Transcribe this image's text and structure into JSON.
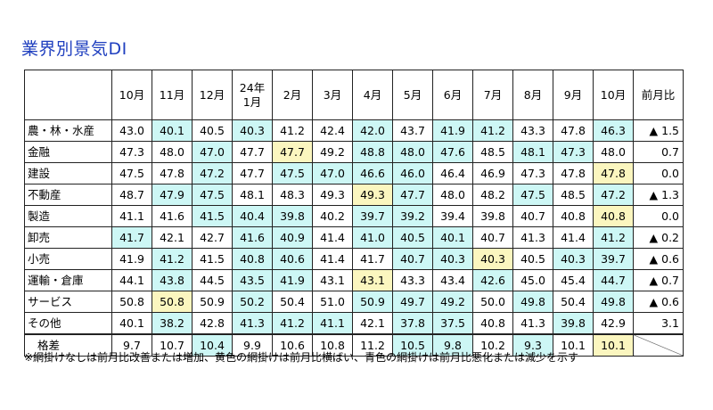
{
  "title": "業界別景気DI",
  "columns": [
    "10月",
    "11月",
    "12月",
    "24年\n1月",
    "2月",
    "3月",
    "4月",
    "5月",
    "6月",
    "7月",
    "8月",
    "9月",
    "10月",
    "前月比"
  ],
  "rows": [
    {
      "label": "農・林・水産",
      "values": [
        "43.0",
        "40.1",
        "40.5",
        "40.3",
        "41.2",
        "42.4",
        "42.0",
        "43.7",
        "41.9",
        "41.2",
        "43.3",
        "47.8",
        "46.3"
      ],
      "shade": [
        "",
        "c",
        "",
        "c",
        "",
        "",
        "c",
        "",
        "c",
        "c",
        "",
        "",
        "c"
      ],
      "diff": "▲ 1.5"
    },
    {
      "label": "金融",
      "values": [
        "47.3",
        "48.0",
        "47.0",
        "47.7",
        "47.7",
        "49.2",
        "48.8",
        "48.0",
        "47.6",
        "48.5",
        "48.1",
        "47.3",
        "48.0"
      ],
      "shade": [
        "",
        "",
        "c",
        "",
        "y",
        "",
        "c",
        "c",
        "c",
        "",
        "c",
        "c",
        ""
      ],
      "diff": "0.7"
    },
    {
      "label": "建設",
      "values": [
        "47.5",
        "47.8",
        "47.2",
        "47.7",
        "47.5",
        "47.0",
        "46.6",
        "46.0",
        "46.4",
        "46.9",
        "47.3",
        "47.8",
        "47.8"
      ],
      "shade": [
        "",
        "",
        "c",
        "",
        "c",
        "c",
        "c",
        "c",
        "",
        "",
        "",
        "",
        "y"
      ],
      "diff": "0.0"
    },
    {
      "label": "不動産",
      "values": [
        "48.7",
        "47.9",
        "47.5",
        "48.1",
        "48.3",
        "49.3",
        "49.3",
        "47.7",
        "48.0",
        "48.2",
        "47.5",
        "48.5",
        "47.2"
      ],
      "shade": [
        "",
        "c",
        "c",
        "",
        "",
        "",
        "y",
        "c",
        "",
        "",
        "c",
        "",
        "c"
      ],
      "diff": "▲ 1.3"
    },
    {
      "label": "製造",
      "values": [
        "41.1",
        "41.6",
        "41.5",
        "40.4",
        "39.8",
        "40.2",
        "39.7",
        "39.2",
        "39.4",
        "39.8",
        "40.7",
        "40.8",
        "40.8"
      ],
      "shade": [
        "",
        "",
        "c",
        "c",
        "c",
        "",
        "c",
        "c",
        "",
        "",
        "",
        "",
        "y"
      ],
      "diff": "0.0"
    },
    {
      "label": "卸売",
      "values": [
        "41.7",
        "42.1",
        "42.7",
        "41.6",
        "40.9",
        "41.4",
        "41.0",
        "40.5",
        "40.1",
        "40.7",
        "41.3",
        "41.4",
        "41.2"
      ],
      "shade": [
        "c",
        "",
        "",
        "c",
        "c",
        "",
        "c",
        "c",
        "c",
        "",
        "",
        "",
        "c"
      ],
      "diff": "▲ 0.2"
    },
    {
      "label": "小売",
      "values": [
        "41.9",
        "41.2",
        "41.5",
        "40.8",
        "40.6",
        "41.4",
        "41.7",
        "40.7",
        "40.3",
        "40.3",
        "40.5",
        "40.3",
        "39.7"
      ],
      "shade": [
        "",
        "c",
        "",
        "c",
        "c",
        "",
        "",
        "c",
        "c",
        "y",
        "",
        "c",
        "c"
      ],
      "diff": "▲ 0.6"
    },
    {
      "label": "運輸・倉庫",
      "values": [
        "44.1",
        "43.8",
        "44.5",
        "43.5",
        "41.9",
        "43.1",
        "43.1",
        "43.3",
        "43.4",
        "42.6",
        "45.0",
        "45.4",
        "44.7"
      ],
      "shade": [
        "",
        "c",
        "",
        "c",
        "c",
        "",
        "y",
        "",
        "",
        "c",
        "",
        "",
        "c"
      ],
      "diff": "▲ 0.7"
    },
    {
      "label": "サービス",
      "values": [
        "50.8",
        "50.8",
        "50.9",
        "50.2",
        "50.4",
        "51.0",
        "50.9",
        "49.7",
        "49.2",
        "50.0",
        "49.8",
        "50.4",
        "49.8"
      ],
      "shade": [
        "",
        "y",
        "",
        "c",
        "",
        "",
        "c",
        "c",
        "c",
        "",
        "c",
        "",
        "c"
      ],
      "diff": "▲ 0.6"
    },
    {
      "label": "その他",
      "values": [
        "40.1",
        "38.2",
        "42.8",
        "41.3",
        "41.2",
        "41.1",
        "42.1",
        "37.8",
        "37.5",
        "40.8",
        "41.3",
        "39.8",
        "42.9"
      ],
      "shade": [
        "",
        "c",
        "",
        "c",
        "c",
        "c",
        "",
        "c",
        "c",
        "",
        "",
        "c",
        ""
      ],
      "diff": "3.1"
    }
  ],
  "footer": {
    "label": "格差",
    "values": [
      "9.7",
      "10.7",
      "10.4",
      "9.9",
      "10.6",
      "10.8",
      "11.2",
      "10.5",
      "9.8",
      "10.2",
      "9.3",
      "10.1",
      "10.1"
    ],
    "shade": [
      "",
      "",
      "c",
      "",
      "",
      "",
      "",
      "c",
      "c",
      "",
      "c",
      "",
      "y"
    ]
  },
  "footnote": "※網掛けなしは前月比改善または増加、黄色の網掛けは前月比横ばい、青色の網掛けは前月比悪化または減少を示す"
}
